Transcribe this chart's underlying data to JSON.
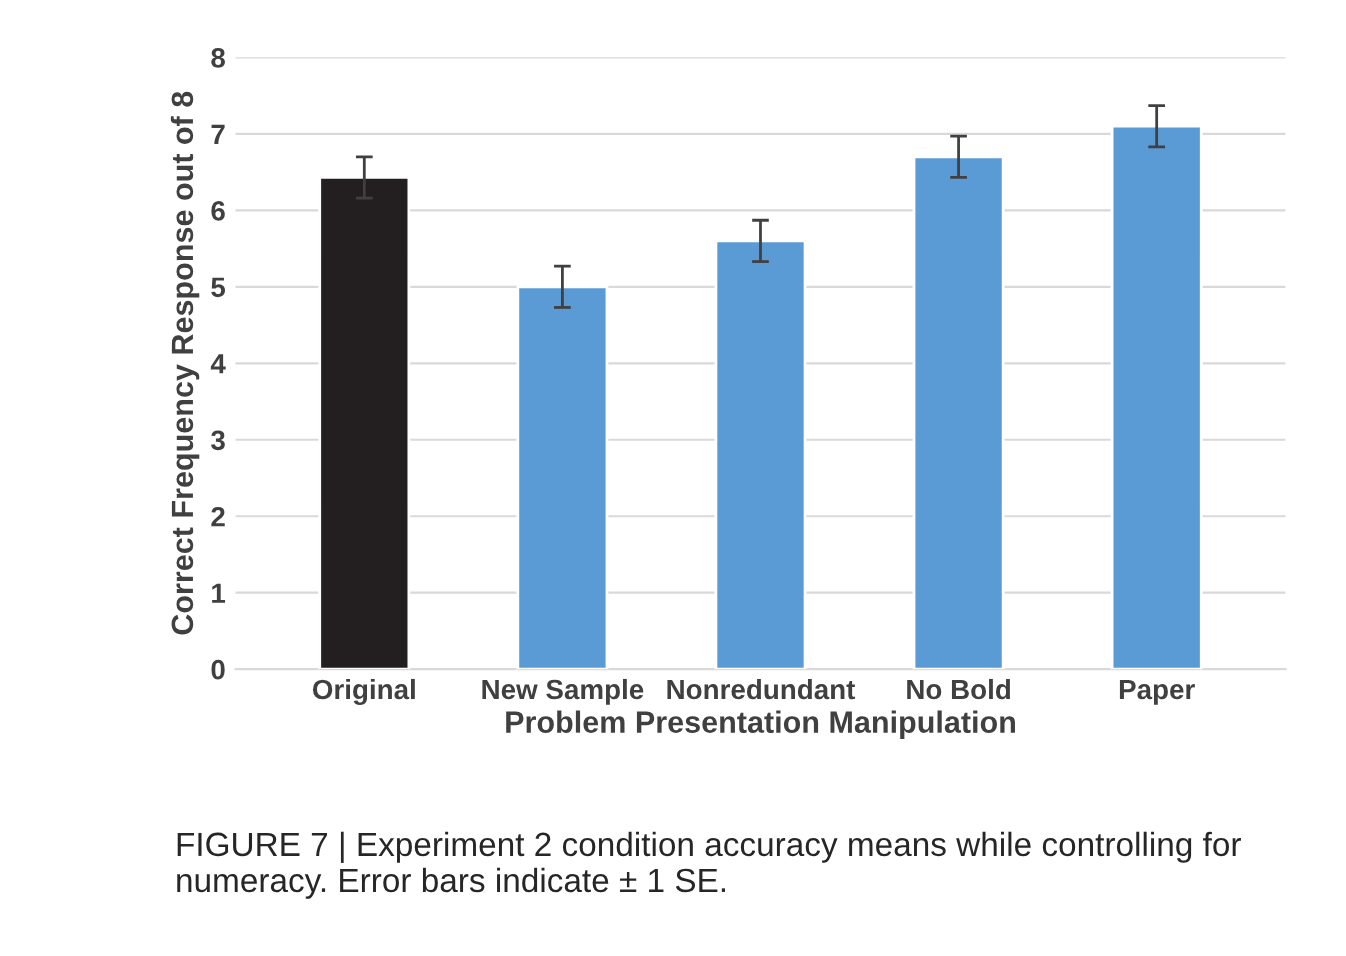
{
  "chart_data": {
    "type": "bar",
    "xlabel": "Problem Presentation Manipulation",
    "ylabel": "Correct Frequency Response out of 8",
    "categories": [
      "Original",
      "New Sample",
      "Nonredundant",
      "No Bold",
      "Paper"
    ],
    "values": [
      6.43,
      5.0,
      5.6,
      6.7,
      7.1
    ],
    "errors": [
      0.27,
      0.27,
      0.27,
      0.27,
      0.27
    ],
    "colors": [
      "#231f20",
      "#5b9bd5",
      "#5b9bd5",
      "#5b9bd5",
      "#5b9bd5"
    ],
    "ylim": [
      0,
      8
    ],
    "yticks": [
      0,
      1,
      2,
      3,
      4,
      5,
      6,
      7,
      8
    ],
    "grid": "y",
    "annotations": [
      "FIGURE 7 | Experiment 2 condition accuracy means while controlling for numeracy. Error bars indicate ± 1 SE."
    ]
  }
}
